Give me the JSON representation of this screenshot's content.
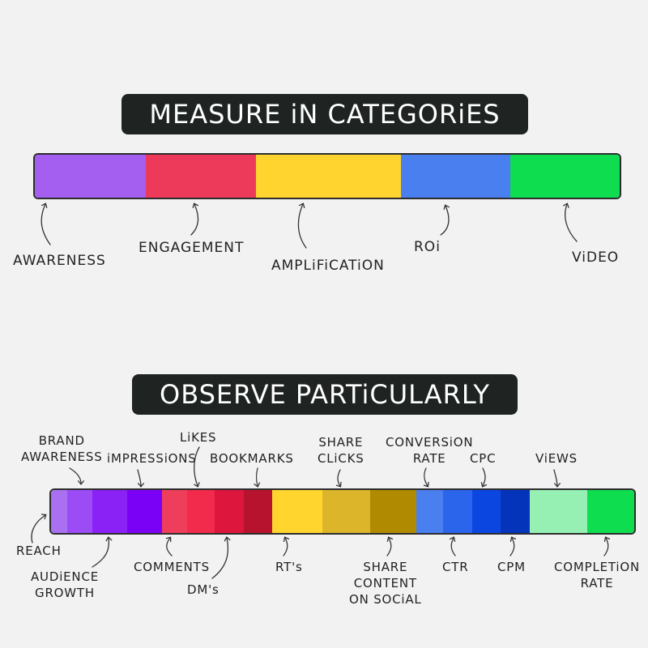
{
  "titles": {
    "top": "MEASURE iN CATEGORiES",
    "bottom": "OBSERVE PARTiCULARLY"
  },
  "categories": [
    {
      "name": "awareness",
      "label": "AWARENESS",
      "color": "#a45ef0"
    },
    {
      "name": "engagement",
      "label": "ENGAGEMENT",
      "color": "#ee3a5a"
    },
    {
      "name": "amplification",
      "label": "AMPLiFiCATiON",
      "color": "#ffd42e"
    },
    {
      "name": "roi",
      "label": "ROi",
      "color": "#4a7ff0"
    },
    {
      "name": "video",
      "label": "ViDEO",
      "color": "#0edd50"
    }
  ],
  "metrics": [
    {
      "name": "reach",
      "lines": [
        "REACH"
      ],
      "color": "#a971f2"
    },
    {
      "name": "brand-awareness",
      "lines": [
        "BRAND",
        "AWARENESS"
      ],
      "color": "#9b4cf5"
    },
    {
      "name": "audience-growth",
      "lines": [
        "AUDiENCE",
        "GROWTH"
      ],
      "color": "#8a22f5"
    },
    {
      "name": "impressions",
      "lines": [
        "iMPRESSiONS"
      ],
      "color": "#7b00f6"
    },
    {
      "name": "comments",
      "lines": [
        "COMMENTS"
      ],
      "color": "#ef3e5b"
    },
    {
      "name": "likes",
      "lines": [
        "LiKES"
      ],
      "color": "#f22a4c"
    },
    {
      "name": "dms",
      "lines": [
        "DM's"
      ],
      "color": "#dc163d"
    },
    {
      "name": "bookmarks",
      "lines": [
        "BOOKMARKS"
      ],
      "color": "#b8132e"
    },
    {
      "name": "rts",
      "lines": [
        "RT's"
      ],
      "color": "#ffd52e"
    },
    {
      "name": "share-clicks",
      "lines": [
        "SHARE",
        "CLiCKS"
      ],
      "color": "#dcb52b"
    },
    {
      "name": "share-content",
      "lines": [
        "SHARE",
        "CONTENT",
        "ON SOCiAL"
      ],
      "color": "#b08a00"
    },
    {
      "name": "conversion-rate",
      "lines": [
        "CONVERSiON",
        "RATE"
      ],
      "color": "#4a7ff0"
    },
    {
      "name": "ctr",
      "lines": [
        "CTR"
      ],
      "color": "#2a65ec"
    },
    {
      "name": "cpc",
      "lines": [
        "CPC"
      ],
      "color": "#0c46e0"
    },
    {
      "name": "cpm",
      "lines": [
        "CPM"
      ],
      "color": "#0434b9"
    },
    {
      "name": "views",
      "lines": [
        "ViEWS"
      ],
      "color": "#96f0b4"
    },
    {
      "name": "completion-rate",
      "lines": [
        "COMPLETiON",
        "RATE"
      ],
      "color": "#0edd50"
    }
  ]
}
